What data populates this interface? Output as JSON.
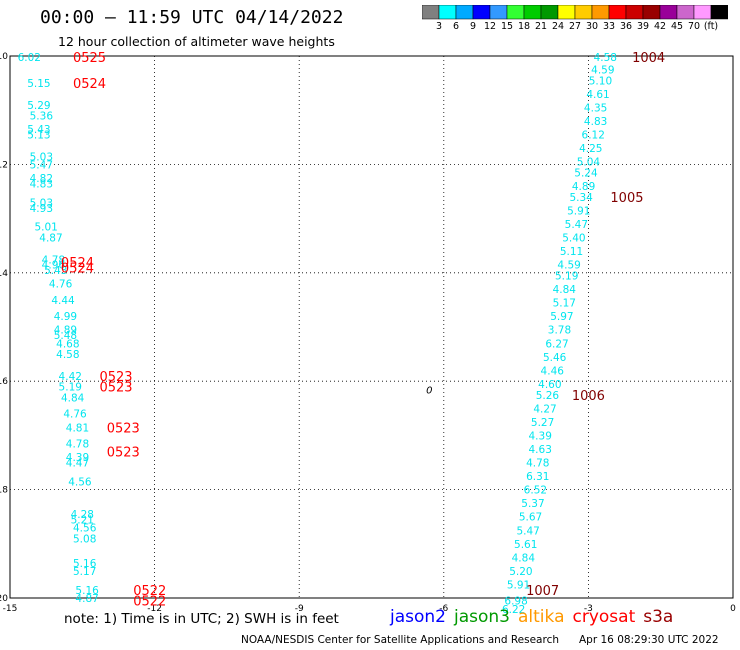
{
  "header": {
    "title": "00:00 – 11:59 UTC 04/14/2022",
    "subtitle": "12 hour collection of altimeter wave heights"
  },
  "colorbar": {
    "colors": [
      "#808080",
      "#00ffff",
      "#00aaff",
      "#0000ff",
      "#3399ff",
      "#33ff33",
      "#00cc00",
      "#009900",
      "#ffff00",
      "#ffcc00",
      "#ff9900",
      "#ff0000",
      "#cc0000",
      "#990000",
      "#990099",
      "#cc66cc",
      "#ff99ff",
      "#000000"
    ],
    "tick_labels": [
      "3",
      "6",
      "9",
      "12",
      "15",
      "18",
      "21",
      "24",
      "27",
      "30",
      "33",
      "36",
      "39",
      "42",
      "45",
      "70",
      "(ft)"
    ]
  },
  "chart_data": {
    "type": "scatter",
    "xlim": [
      -15,
      0
    ],
    "ylim": [
      -20,
      -10
    ],
    "x_ticks": [
      "-15",
      "-12",
      "-9",
      "-6",
      "-3",
      "0"
    ],
    "y_ticks": [
      "-10",
      "-12",
      "-14",
      "-16",
      "-18",
      "-20"
    ],
    "grid": true,
    "swh_points": [
      {
        "x": -14.6,
        "y": -10.02,
        "t": "6.02"
      },
      {
        "x": -14.4,
        "y": -10.5,
        "t": "5.15"
      },
      {
        "x": -14.4,
        "y": -10.9,
        "t": "5.29"
      },
      {
        "x": -14.35,
        "y": -11.1,
        "t": "5.36"
      },
      {
        "x": -14.4,
        "y": -11.35,
        "t": "5.43"
      },
      {
        "x": -14.4,
        "y": -11.45,
        "t": "5.13"
      },
      {
        "x": -14.35,
        "y": -11.85,
        "t": "5.03"
      },
      {
        "x": -14.35,
        "y": -12.0,
        "t": "5.47"
      },
      {
        "x": -14.35,
        "y": -12.25,
        "t": "4.82"
      },
      {
        "x": -14.35,
        "y": -12.35,
        "t": "4.83"
      },
      {
        "x": -14.35,
        "y": -12.7,
        "t": "5.03"
      },
      {
        "x": -14.35,
        "y": -12.8,
        "t": "4.93"
      },
      {
        "x": -14.25,
        "y": -13.15,
        "t": "5.01"
      },
      {
        "x": -14.15,
        "y": -13.35,
        "t": "4.87"
      },
      {
        "x": -14.1,
        "y": -13.75,
        "t": "4.78"
      },
      {
        "x": -14.1,
        "y": -13.85,
        "t": "4.96"
      },
      {
        "x": -14.05,
        "y": -13.95,
        "t": "5.43"
      },
      {
        "x": -13.95,
        "y": -14.2,
        "t": "4.76"
      },
      {
        "x": -13.9,
        "y": -14.5,
        "t": "4.44"
      },
      {
        "x": -13.85,
        "y": -14.8,
        "t": "4.99"
      },
      {
        "x": -13.85,
        "y": -15.05,
        "t": "4.89"
      },
      {
        "x": -13.85,
        "y": -15.15,
        "t": "5.48"
      },
      {
        "x": -13.8,
        "y": -15.3,
        "t": "4.68"
      },
      {
        "x": -13.8,
        "y": -15.5,
        "t": "4.58"
      },
      {
        "x": -13.75,
        "y": -15.9,
        "t": "4.42"
      },
      {
        "x": -13.75,
        "y": -16.1,
        "t": "5.19"
      },
      {
        "x": -13.7,
        "y": -16.3,
        "t": "4.84"
      },
      {
        "x": -13.65,
        "y": -16.6,
        "t": "4.76"
      },
      {
        "x": -13.6,
        "y": -16.85,
        "t": "4.81"
      },
      {
        "x": -13.6,
        "y": -17.15,
        "t": "4.78"
      },
      {
        "x": -13.6,
        "y": -17.4,
        "t": "4.39"
      },
      {
        "x": -13.6,
        "y": -17.5,
        "t": "4.47"
      },
      {
        "x": -13.55,
        "y": -17.85,
        "t": "4.56"
      },
      {
        "x": -13.5,
        "y": -18.45,
        "t": "4.28"
      },
      {
        "x": -13.5,
        "y": -18.55,
        "t": "5.21"
      },
      {
        "x": -13.45,
        "y": -18.7,
        "t": "4.56"
      },
      {
        "x": -13.45,
        "y": -18.9,
        "t": "5.08"
      },
      {
        "x": -13.45,
        "y": -19.35,
        "t": "5.16"
      },
      {
        "x": -13.45,
        "y": -19.5,
        "t": "5.17"
      },
      {
        "x": -13.4,
        "y": -19.85,
        "t": "5.16"
      },
      {
        "x": -13.4,
        "y": -20.0,
        "t": "4.87"
      },
      {
        "x": -2.65,
        "y": -10.02,
        "t": "4.58"
      },
      {
        "x": -2.7,
        "y": -10.25,
        "t": "4.59"
      },
      {
        "x": -2.75,
        "y": -10.45,
        "t": "5.10"
      },
      {
        "x": -2.8,
        "y": -10.7,
        "t": "4.61"
      },
      {
        "x": -2.85,
        "y": -10.95,
        "t": "4.35"
      },
      {
        "x": -2.85,
        "y": -11.2,
        "t": "4.83"
      },
      {
        "x": -2.9,
        "y": -11.45,
        "t": "6.12"
      },
      {
        "x": -2.95,
        "y": -11.7,
        "t": "4.25"
      },
      {
        "x": -3.0,
        "y": -11.95,
        "t": "5.04"
      },
      {
        "x": -3.05,
        "y": -12.15,
        "t": "5.24"
      },
      {
        "x": -3.1,
        "y": -12.4,
        "t": "4.89"
      },
      {
        "x": -3.15,
        "y": -12.6,
        "t": "5.34"
      },
      {
        "x": -3.2,
        "y": -12.85,
        "t": "5.91"
      },
      {
        "x": -3.25,
        "y": -13.1,
        "t": "5.47"
      },
      {
        "x": -3.3,
        "y": -13.35,
        "t": "5.40"
      },
      {
        "x": -3.35,
        "y": -13.6,
        "t": "5.11"
      },
      {
        "x": -3.4,
        "y": -13.85,
        "t": "4.59"
      },
      {
        "x": -3.45,
        "y": -14.05,
        "t": "5.19"
      },
      {
        "x": -3.5,
        "y": -14.3,
        "t": "4.84"
      },
      {
        "x": -3.5,
        "y": -14.55,
        "t": "5.17"
      },
      {
        "x": -3.55,
        "y": -14.8,
        "t": "5.97"
      },
      {
        "x": -3.6,
        "y": -15.05,
        "t": "3.78"
      },
      {
        "x": -3.65,
        "y": -15.3,
        "t": "6.27"
      },
      {
        "x": -3.7,
        "y": -15.55,
        "t": "5.46"
      },
      {
        "x": -3.75,
        "y": -15.8,
        "t": "4.46"
      },
      {
        "x": -3.8,
        "y": -16.05,
        "t": "4.60"
      },
      {
        "x": -3.85,
        "y": -16.25,
        "t": "5.26"
      },
      {
        "x": -3.9,
        "y": -16.5,
        "t": "4.27"
      },
      {
        "x": -3.95,
        "y": -16.75,
        "t": "5.27"
      },
      {
        "x": -4.0,
        "y": -17.0,
        "t": "4.39"
      },
      {
        "x": -4.0,
        "y": -17.25,
        "t": "4.63"
      },
      {
        "x": -4.05,
        "y": -17.5,
        "t": "4.78"
      },
      {
        "x": -4.05,
        "y": -17.75,
        "t": "6.31"
      },
      {
        "x": -4.1,
        "y": -18.0,
        "t": "6.52"
      },
      {
        "x": -4.15,
        "y": -18.25,
        "t": "5.37"
      },
      {
        "x": -4.2,
        "y": -18.5,
        "t": "5.67"
      },
      {
        "x": -4.25,
        "y": -18.75,
        "t": "5.47"
      },
      {
        "x": -4.3,
        "y": -19.0,
        "t": "5.61"
      },
      {
        "x": -4.35,
        "y": -19.25,
        "t": "4.84"
      },
      {
        "x": -4.4,
        "y": -19.5,
        "t": "5.20"
      },
      {
        "x": -4.45,
        "y": -19.75,
        "t": "5.91"
      },
      {
        "x": -4.5,
        "y": -20.05,
        "t": "6.98"
      },
      {
        "x": -4.55,
        "y": -20.2,
        "t": "6.22"
      }
    ],
    "time_labels": [
      {
        "x": -13.35,
        "y": -10.02,
        "t": "0525",
        "c": "#ff0000"
      },
      {
        "x": -13.35,
        "y": -10.5,
        "t": "0524",
        "c": "#ff0000"
      },
      {
        "x": -13.6,
        "y": -13.8,
        "t": "0524",
        "c": "#ff0000"
      },
      {
        "x": -13.6,
        "y": -13.9,
        "t": "0524",
        "c": "#ff0000"
      },
      {
        "x": -12.8,
        "y": -15.9,
        "t": "0523",
        "c": "#ff0000"
      },
      {
        "x": -12.8,
        "y": -16.1,
        "t": "0523",
        "c": "#ff0000"
      },
      {
        "x": -12.65,
        "y": -16.85,
        "t": "0523",
        "c": "#ff0000"
      },
      {
        "x": -12.65,
        "y": -17.3,
        "t": "0523",
        "c": "#ff0000"
      },
      {
        "x": -12.1,
        "y": -19.85,
        "t": "0522",
        "c": "#ff0000"
      },
      {
        "x": -12.1,
        "y": -20.05,
        "t": "0522",
        "c": "#ff0000"
      },
      {
        "x": -1.75,
        "y": -10.02,
        "t": "1004",
        "c": "#800000"
      },
      {
        "x": -2.2,
        "y": -12.6,
        "t": "1005",
        "c": "#800000"
      },
      {
        "x": -3.0,
        "y": -16.25,
        "t": "1006",
        "c": "#800000"
      },
      {
        "x": -3.95,
        "y": -19.85,
        "t": "1007",
        "c": "#800000"
      }
    ],
    "annotations": [
      {
        "x": -6.3,
        "y": -16.15,
        "t": "0"
      }
    ]
  },
  "footer": {
    "note": "note:  1) Time is in UTC;  2) SWH is in feet",
    "legend": [
      {
        "label": "jason2",
        "color": "#0000ff"
      },
      {
        "label": "jason3",
        "color": "#009900"
      },
      {
        "label": "altika",
        "color": "#ff9900"
      },
      {
        "label": "cryosat",
        "color": "#ff0000"
      },
      {
        "label": "s3a",
        "color": "#990000"
      }
    ],
    "credit": "NOAA/NESDIS Center for Satellite Applications and Research",
    "stamp": "Apr 16 08:29:30 UTC 2022"
  }
}
